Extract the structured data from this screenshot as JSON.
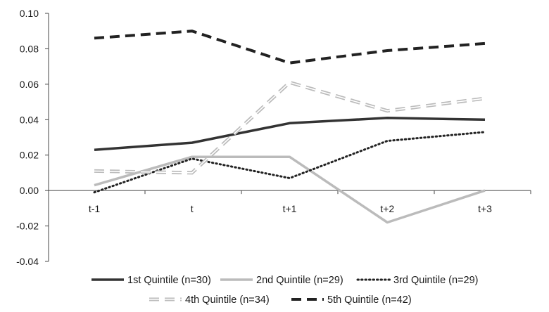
{
  "chart_data": {
    "type": "line",
    "title": "",
    "xlabel": "",
    "ylabel": "",
    "categories": [
      "t-1",
      "t",
      "t+1",
      "t+2",
      "t+3"
    ],
    "ylim": [
      -0.04,
      0.1
    ],
    "yticks": [
      "0.10",
      "0.08",
      "0.06",
      "0.04",
      "0.02",
      "0.00",
      "-0.02",
      "-0.04"
    ],
    "grid": false,
    "legend_position": "bottom",
    "series": [
      {
        "name": "1st Quintile (n=30)",
        "values": [
          0.023,
          0.027,
          0.038,
          0.041,
          0.04
        ],
        "color": "#333333",
        "style": "solid"
      },
      {
        "name": "2nd Quintile (n=29)",
        "values": [
          0.003,
          0.019,
          0.019,
          -0.018,
          0.0
        ],
        "color": "#bbbbbb",
        "style": "solid"
      },
      {
        "name": "3rd Quintile (n=29)",
        "values": [
          -0.001,
          0.018,
          0.007,
          0.028,
          0.033
        ],
        "color": "#222222",
        "style": "dotted"
      },
      {
        "name": "4th Quintile (n=34)",
        "values": [
          0.011,
          0.01,
          0.061,
          0.045,
          0.052
        ],
        "color": "#bbbbbb",
        "style": "double-dash"
      },
      {
        "name": "5th Quintile (n=42)",
        "values": [
          0.086,
          0.09,
          0.072,
          0.079,
          0.083
        ],
        "color": "#222222",
        "style": "dashed"
      }
    ]
  }
}
